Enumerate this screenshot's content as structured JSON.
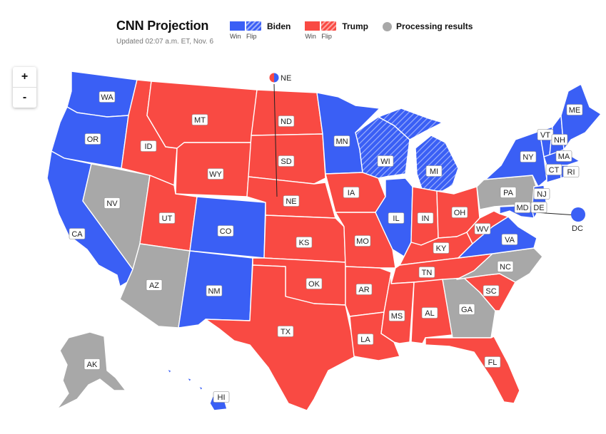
{
  "header": {
    "title": "CNN Projection",
    "updated": "Updated 02:07 a.m. ET, Nov. 6"
  },
  "legend": {
    "biden": {
      "name": "Biden",
      "win": "Win",
      "flip": "Flip",
      "color": "#3a5ff5"
    },
    "trump": {
      "name": "Trump",
      "win": "Win",
      "flip": "Flip",
      "color": "#f94a43"
    },
    "processing": {
      "name": "Processing results",
      "color": "#a8a8a8"
    }
  },
  "zoom": {
    "in": "+",
    "out": "-"
  },
  "states": [
    {
      "code": "WA",
      "status": "biden"
    },
    {
      "code": "OR",
      "status": "biden"
    },
    {
      "code": "CA",
      "status": "biden"
    },
    {
      "code": "NV",
      "status": "processing"
    },
    {
      "code": "ID",
      "status": "trump"
    },
    {
      "code": "MT",
      "status": "trump"
    },
    {
      "code": "WY",
      "status": "trump"
    },
    {
      "code": "UT",
      "status": "trump"
    },
    {
      "code": "AZ",
      "status": "processing"
    },
    {
      "code": "CO",
      "status": "biden"
    },
    {
      "code": "NM",
      "status": "biden"
    },
    {
      "code": "ND",
      "status": "trump"
    },
    {
      "code": "SD",
      "status": "trump"
    },
    {
      "code": "NE",
      "status": "trump"
    },
    {
      "code": "KS",
      "status": "trump"
    },
    {
      "code": "OK",
      "status": "trump"
    },
    {
      "code": "TX",
      "status": "trump"
    },
    {
      "code": "MN",
      "status": "biden"
    },
    {
      "code": "IA",
      "status": "trump"
    },
    {
      "code": "MO",
      "status": "trump"
    },
    {
      "code": "AR",
      "status": "trump"
    },
    {
      "code": "LA",
      "status": "trump"
    },
    {
      "code": "WI",
      "status": "biden-flip"
    },
    {
      "code": "MI",
      "status": "biden-flip"
    },
    {
      "code": "IL",
      "status": "biden"
    },
    {
      "code": "IN",
      "status": "trump"
    },
    {
      "code": "OH",
      "status": "trump"
    },
    {
      "code": "KY",
      "status": "trump"
    },
    {
      "code": "TN",
      "status": "trump"
    },
    {
      "code": "MS",
      "status": "trump"
    },
    {
      "code": "AL",
      "status": "trump"
    },
    {
      "code": "GA",
      "status": "processing"
    },
    {
      "code": "FL",
      "status": "trump"
    },
    {
      "code": "SC",
      "status": "trump"
    },
    {
      "code": "NC",
      "status": "processing"
    },
    {
      "code": "VA",
      "status": "biden"
    },
    {
      "code": "WV",
      "status": "trump"
    },
    {
      "code": "PA",
      "status": "processing"
    },
    {
      "code": "NY",
      "status": "biden"
    },
    {
      "code": "VT",
      "status": "biden"
    },
    {
      "code": "NH",
      "status": "biden"
    },
    {
      "code": "ME",
      "status": "biden"
    },
    {
      "code": "MA",
      "status": "biden"
    },
    {
      "code": "CT",
      "status": "biden"
    },
    {
      "code": "RI",
      "status": "biden"
    },
    {
      "code": "NJ",
      "status": "biden"
    },
    {
      "code": "DE",
      "status": "biden"
    },
    {
      "code": "MD",
      "status": "biden"
    },
    {
      "code": "DC",
      "status": "biden"
    },
    {
      "code": "AK",
      "status": "processing"
    },
    {
      "code": "HI",
      "status": "biden"
    }
  ],
  "callouts": {
    "ne": "NE",
    "dc": "DC"
  }
}
